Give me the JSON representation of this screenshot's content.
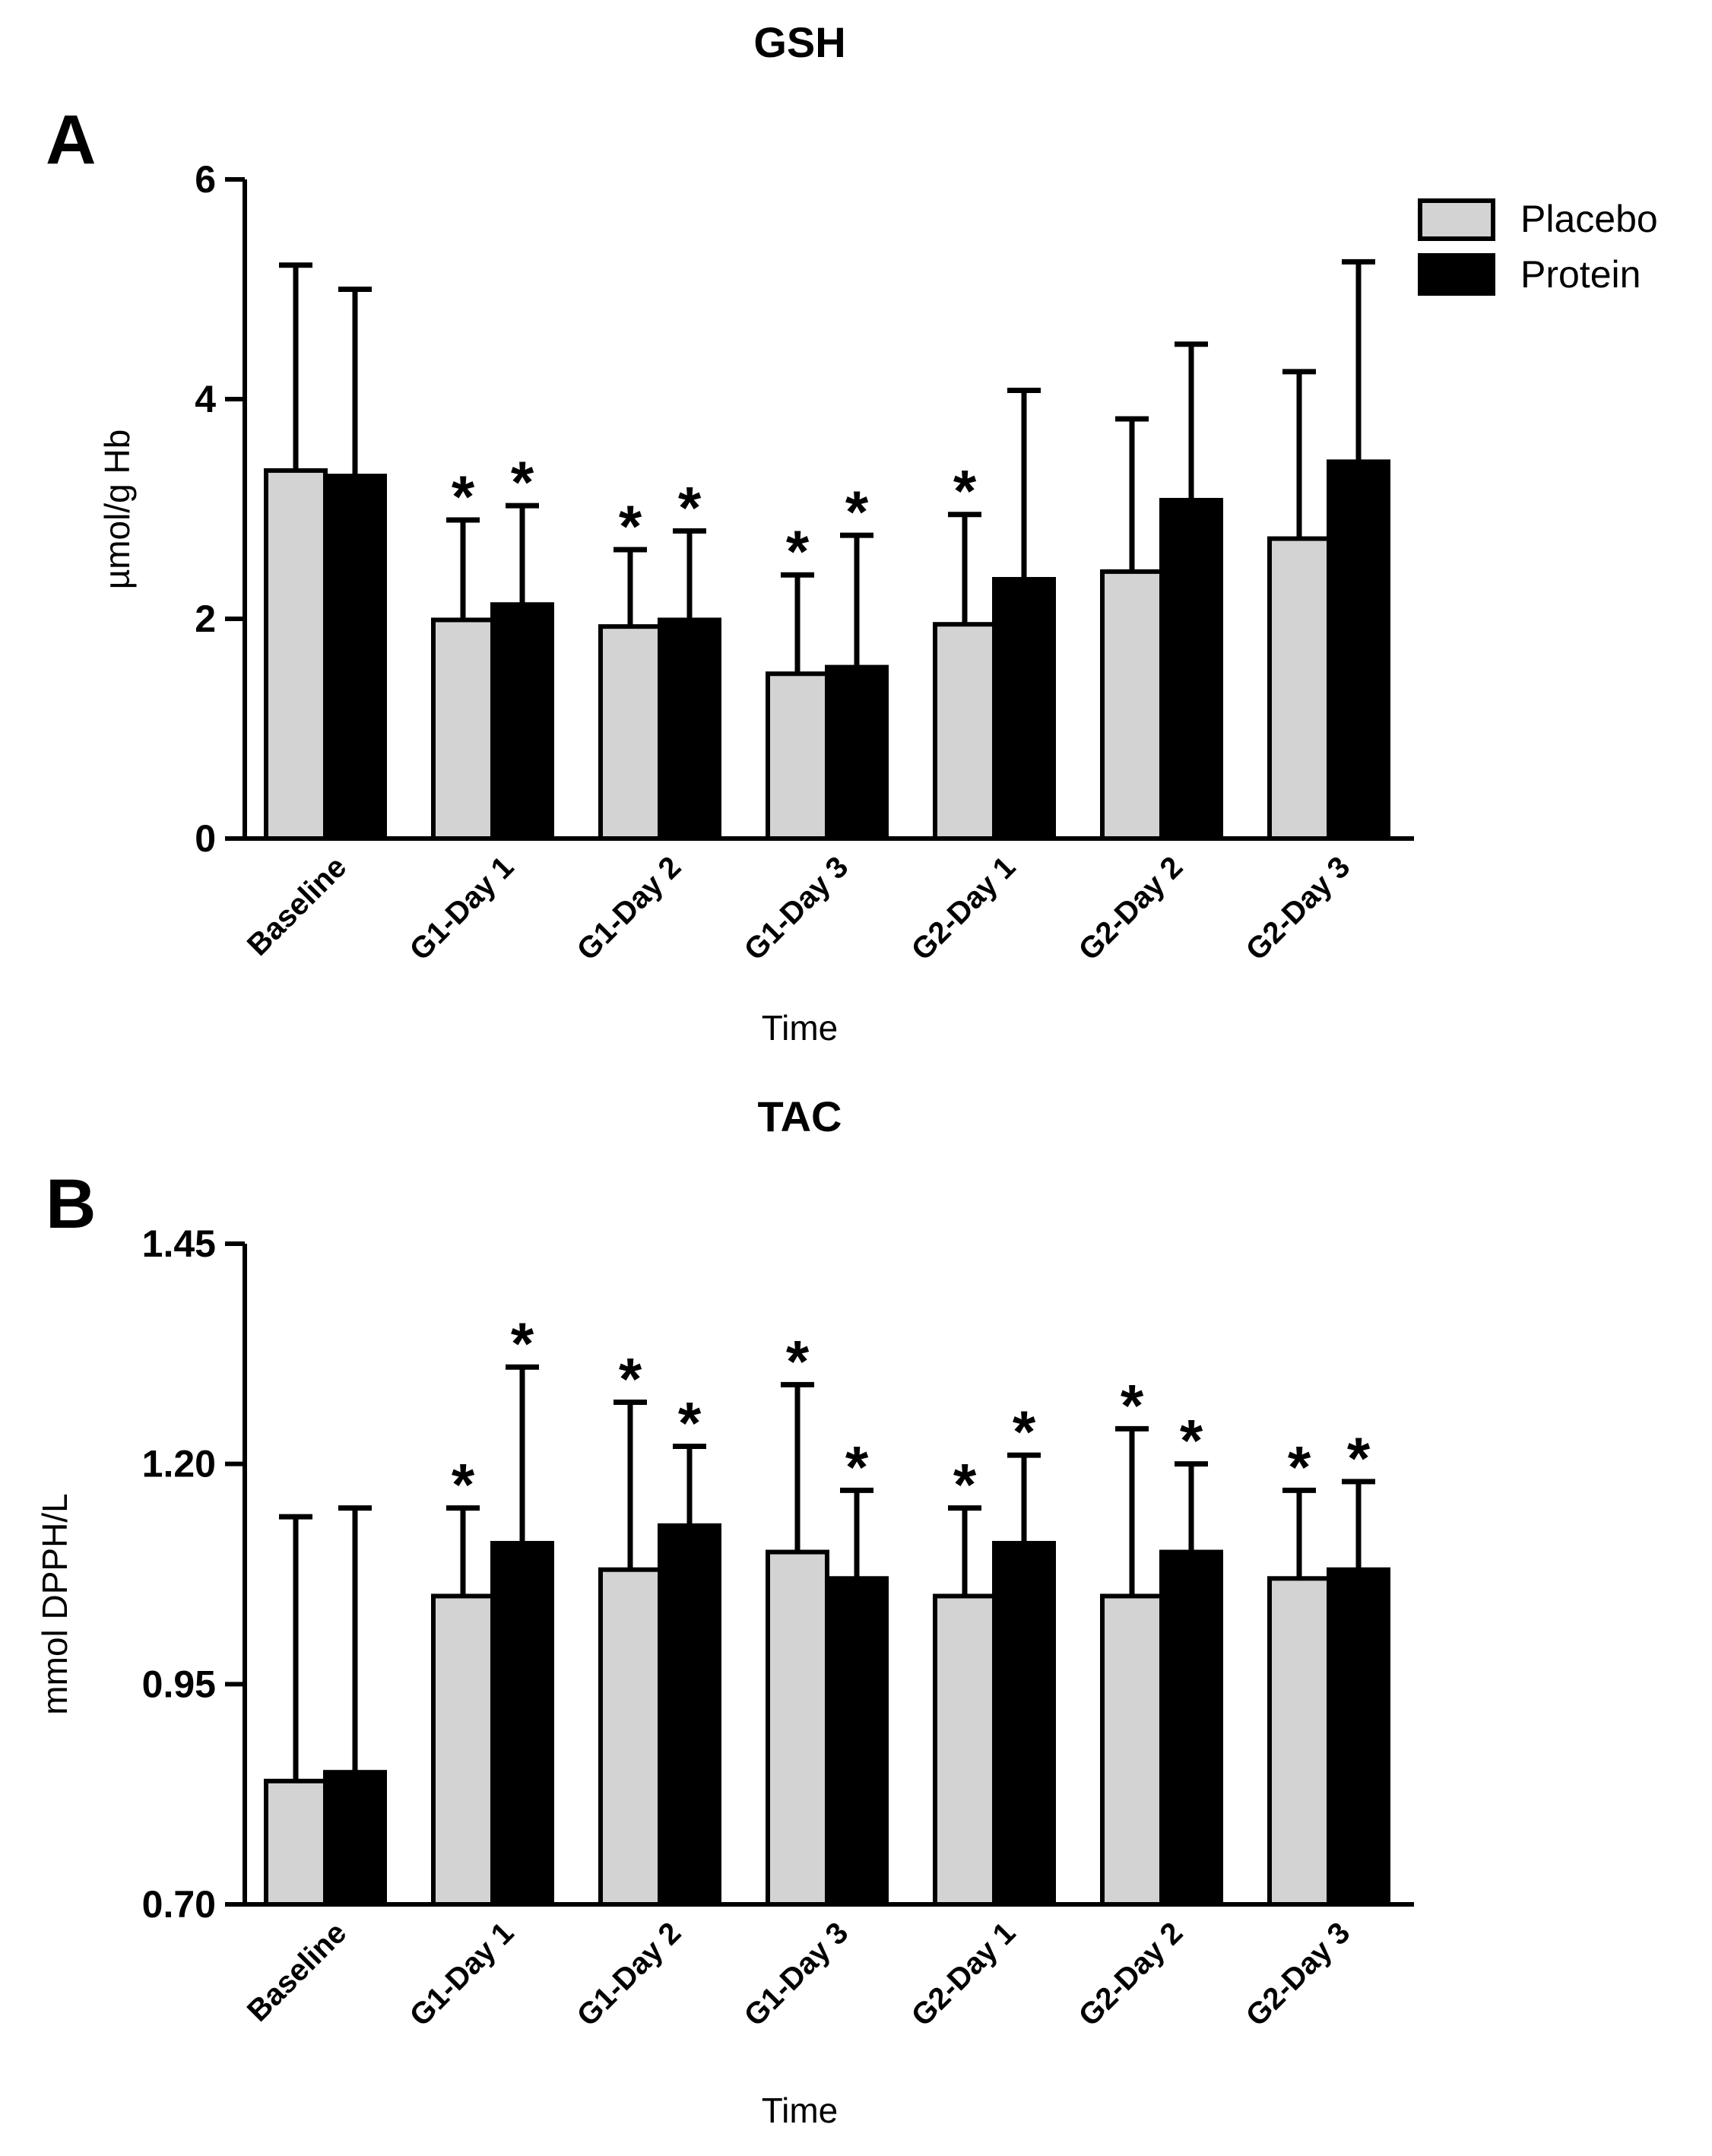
{
  "chart_data": [
    {
      "panel_label": "A",
      "type": "bar",
      "title": "GSH",
      "xlabel": "Time",
      "ylabel": "µmol/g Hb",
      "ylim": [
        0,
        6
      ],
      "yticks": [
        0,
        2,
        4,
        6
      ],
      "ytick_labels": [
        "0",
        "2",
        "4",
        "6"
      ],
      "categories": [
        "Baseline",
        "G1-Day 1",
        "G1-Day 2",
        "G1-Day 3",
        "G2-Day 1",
        "G2-Day 2",
        "G2-Day 3"
      ],
      "series": [
        {
          "name": "Placebo",
          "color": "#d3d3d3",
          "values": [
            3.35,
            1.99,
            1.93,
            1.5,
            1.95,
            2.43,
            2.73
          ],
          "error_upper": [
            5.22,
            2.9,
            2.63,
            2.4,
            2.95,
            3.82,
            4.25
          ],
          "significant": [
            false,
            true,
            true,
            true,
            true,
            false,
            false
          ]
        },
        {
          "name": "Protein",
          "color": "#000000",
          "values": [
            3.3,
            2.13,
            1.99,
            1.56,
            2.36,
            3.08,
            3.43
          ],
          "error_upper": [
            5.0,
            3.03,
            2.8,
            2.76,
            4.08,
            4.5,
            5.25
          ],
          "significant": [
            false,
            true,
            true,
            true,
            false,
            false,
            false
          ]
        }
      ],
      "significance_marker": "*",
      "legend": {
        "placement": "top-right"
      }
    },
    {
      "panel_label": "B",
      "type": "bar",
      "title": "TAC",
      "xlabel": "Time",
      "ylabel": "mmol DPPH/L",
      "ylim": [
        0.7,
        1.45
      ],
      "yticks": [
        0.7,
        0.95,
        1.2,
        1.45
      ],
      "ytick_labels": [
        "0.70",
        "0.95",
        "1.20",
        "1.45"
      ],
      "categories": [
        "Baseline",
        "G1-Day 1",
        "G1-Day 2",
        "G1-Day 3",
        "G2-Day 1",
        "G2-Day 2",
        "G2-Day 3"
      ],
      "series": [
        {
          "name": "Placebo",
          "color": "#d3d3d3",
          "values": [
            0.84,
            1.05,
            1.08,
            1.1,
            1.05,
            1.05,
            1.07
          ],
          "error_upper": [
            1.14,
            1.15,
            1.27,
            1.29,
            1.15,
            1.24,
            1.17
          ],
          "significant": [
            false,
            true,
            true,
            true,
            true,
            true,
            true
          ]
        },
        {
          "name": "Protein",
          "color": "#000000",
          "values": [
            0.85,
            1.11,
            1.13,
            1.07,
            1.11,
            1.1,
            1.08
          ],
          "error_upper": [
            1.15,
            1.31,
            1.22,
            1.17,
            1.21,
            1.2,
            1.18
          ],
          "significant": [
            false,
            true,
            true,
            true,
            true,
            true,
            true
          ]
        }
      ],
      "significance_marker": "*"
    }
  ]
}
